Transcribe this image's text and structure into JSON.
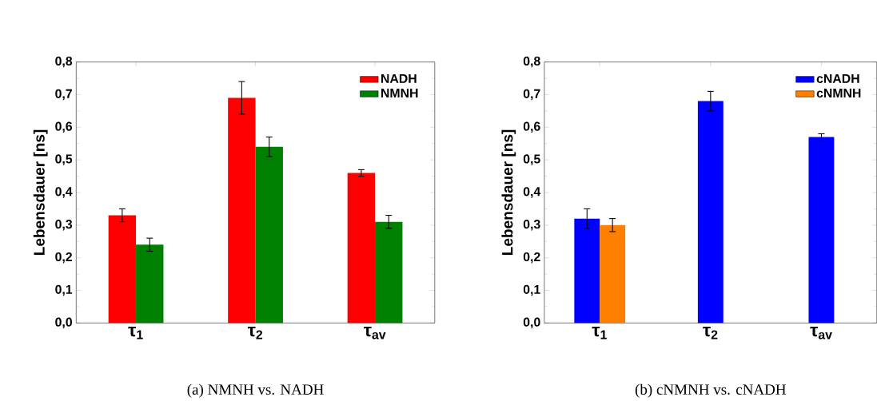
{
  "chart_data": [
    {
      "type": "bar",
      "categories": [
        "τ$_{1}$",
        "τ$_{2}$",
        "τ$_{av}$"
      ],
      "ylabel": "Lebensdauer [ns]",
      "ylim": [
        0,
        0.8
      ],
      "yticks": [
        {
          "value": 0,
          "label": "0,0"
        },
        {
          "value": 0.1,
          "label": "0,1"
        },
        {
          "value": 0.2,
          "label": "0,2"
        },
        {
          "value": 0.3,
          "label": "0,3"
        },
        {
          "value": 0.4,
          "label": "0,4"
        },
        {
          "value": 0.5,
          "label": "0,5"
        },
        {
          "value": 0.6,
          "label": "0,6"
        },
        {
          "value": 0.7,
          "label": "0,7"
        },
        {
          "value": 0.8,
          "label": "0,8"
        }
      ],
      "series": [
        {
          "name": "NADH",
          "color": "#ff0000",
          "values": [
            0.33,
            0.69,
            0.46
          ],
          "errors": [
            0.02,
            0.05,
            0.01
          ]
        },
        {
          "name": "NMNH",
          "color": "#008000",
          "values": [
            0.24,
            0.54,
            0.31
          ],
          "errors": [
            0.02,
            0.03,
            0.02
          ]
        }
      ],
      "legend": "top right",
      "grid": false,
      "annotations": [
        "(a) NMNH vs. NADH"
      ]
    },
    {
      "type": "bar",
      "categories": [
        "τ$_{1}$",
        "τ$_{2}$",
        "τ$_{av}$"
      ],
      "ylabel": "Lebensdauer [ns]",
      "ylim": [
        0,
        0.8
      ],
      "yticks": [
        {
          "value": 0,
          "label": "0,0"
        },
        {
          "value": 0.1,
          "label": "0,1"
        },
        {
          "value": 0.2,
          "label": "0,2"
        },
        {
          "value": 0.3,
          "label": "0,3"
        },
        {
          "value": 0.4,
          "label": "0,4"
        },
        {
          "value": 0.5,
          "label": "0,5"
        },
        {
          "value": 0.6,
          "label": "0,6"
        },
        {
          "value": 0.7,
          "label": "0,7"
        },
        {
          "value": 0.8,
          "label": "0,8"
        }
      ],
      "series": [
        {
          "name": "cNADH",
          "color": "#0000ff",
          "values": [
            0.32,
            0.68,
            0.57
          ],
          "errors": [
            0.03,
            0.03,
            0.01
          ]
        },
        {
          "name": "cNMNH",
          "color": "#ff8000",
          "values": [
            0.3,
            null,
            null
          ],
          "errors": [
            0.02,
            null,
            null
          ]
        }
      ],
      "legend": "top right",
      "grid": false,
      "annotations": [
        "(b) cNMNH vs. cNADH"
      ]
    }
  ]
}
